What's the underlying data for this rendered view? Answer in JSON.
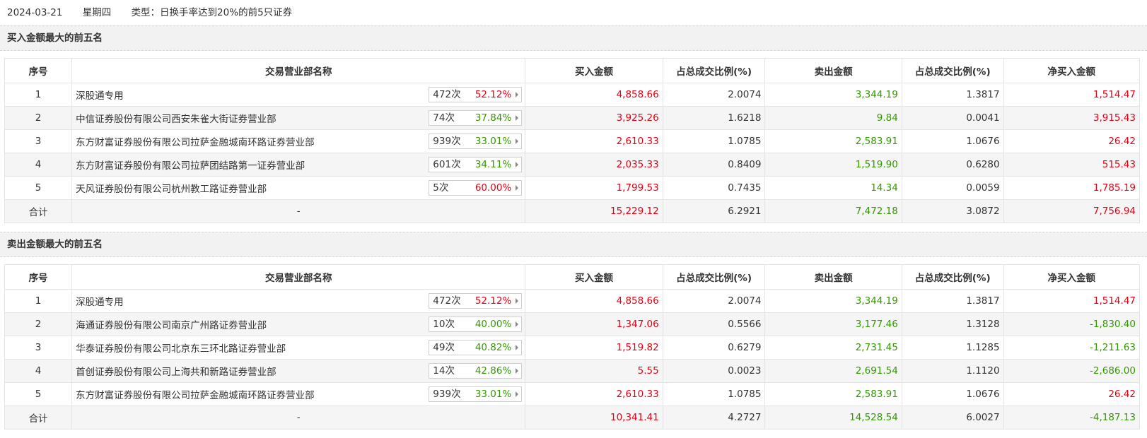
{
  "header": {
    "date": "2024-03-21",
    "weekday": "星期四",
    "type_text": "类型：日换手率达到20%的前5只证券"
  },
  "columns": [
    "序号",
    "交易营业部名称",
    "买入金额",
    "占总成交比例(%)",
    "卖出金额",
    "占总成交比例(%)",
    "净买入金额"
  ],
  "colors": {
    "up": "#e60012",
    "down": "#339900",
    "section_bg": "#f2f2f2",
    "row_alt_bg": "#f5f5f5"
  },
  "buy_section": {
    "title": "买入金额最大的前五名",
    "rows": [
      {
        "no": "1",
        "name": "深股通专用",
        "count": "472次",
        "pct": "52.12%",
        "pct_color": "red",
        "buy": "4,858.66",
        "buy_ratio": "2.0074",
        "sell": "3,344.19",
        "sell_ratio": "1.3817",
        "net": "1,514.47",
        "net_color": "red"
      },
      {
        "no": "2",
        "name": "中信证券股份有限公司西安朱雀大街证券营业部",
        "count": "74次",
        "pct": "37.84%",
        "pct_color": "green",
        "buy": "3,925.26",
        "buy_ratio": "1.6218",
        "sell": "9.84",
        "sell_ratio": "0.0041",
        "net": "3,915.43",
        "net_color": "red"
      },
      {
        "no": "3",
        "name": "东方财富证券股份有限公司拉萨金融城南环路证券营业部",
        "count": "939次",
        "pct": "33.01%",
        "pct_color": "green",
        "buy": "2,610.33",
        "buy_ratio": "1.0785",
        "sell": "2,583.91",
        "sell_ratio": "1.0676",
        "net": "26.42",
        "net_color": "red"
      },
      {
        "no": "4",
        "name": "东方财富证券股份有限公司拉萨团结路第一证券营业部",
        "count": "601次",
        "pct": "34.11%",
        "pct_color": "green",
        "buy": "2,035.33",
        "buy_ratio": "0.8409",
        "sell": "1,519.90",
        "sell_ratio": "0.6280",
        "net": "515.43",
        "net_color": "red"
      },
      {
        "no": "5",
        "name": "天风证券股份有限公司杭州教工路证券营业部",
        "count": "5次",
        "pct": "60.00%",
        "pct_color": "red",
        "buy": "1,799.53",
        "buy_ratio": "0.7435",
        "sell": "14.34",
        "sell_ratio": "0.0059",
        "net": "1,785.19",
        "net_color": "red"
      }
    ],
    "total": {
      "label": "合计",
      "name": "-",
      "buy": "15,229.12",
      "buy_ratio": "6.2921",
      "sell": "7,472.18",
      "sell_ratio": "3.0872",
      "net": "7,756.94",
      "net_color": "red"
    }
  },
  "sell_section": {
    "title": "卖出金额最大的前五名",
    "rows": [
      {
        "no": "1",
        "name": "深股通专用",
        "count": "472次",
        "pct": "52.12%",
        "pct_color": "red",
        "buy": "4,858.66",
        "buy_ratio": "2.0074",
        "sell": "3,344.19",
        "sell_ratio": "1.3817",
        "net": "1,514.47",
        "net_color": "red"
      },
      {
        "no": "2",
        "name": "海通证券股份有限公司南京广州路证券营业部",
        "count": "10次",
        "pct": "40.00%",
        "pct_color": "green",
        "buy": "1,347.06",
        "buy_ratio": "0.5566",
        "sell": "3,177.46",
        "sell_ratio": "1.3128",
        "net": "-1,830.40",
        "net_color": "green"
      },
      {
        "no": "3",
        "name": "华泰证券股份有限公司北京东三环北路证券营业部",
        "count": "49次",
        "pct": "40.82%",
        "pct_color": "green",
        "buy": "1,519.82",
        "buy_ratio": "0.6279",
        "sell": "2,731.45",
        "sell_ratio": "1.1285",
        "net": "-1,211.63",
        "net_color": "green"
      },
      {
        "no": "4",
        "name": "首创证券股份有限公司上海共和新路证券营业部",
        "count": "14次",
        "pct": "42.86%",
        "pct_color": "green",
        "buy": "5.55",
        "buy_ratio": "0.0023",
        "sell": "2,691.54",
        "sell_ratio": "1.1120",
        "net": "-2,686.00",
        "net_color": "green"
      },
      {
        "no": "5",
        "name": "东方财富证券股份有限公司拉萨金融城南环路证券营业部",
        "count": "939次",
        "pct": "33.01%",
        "pct_color": "green",
        "buy": "2,610.33",
        "buy_ratio": "1.0785",
        "sell": "2,583.91",
        "sell_ratio": "1.0676",
        "net": "26.42",
        "net_color": "red"
      }
    ],
    "total": {
      "label": "合计",
      "name": "-",
      "buy": "10,341.41",
      "buy_ratio": "4.2727",
      "sell": "14,528.54",
      "sell_ratio": "6.0027",
      "net": "-4,187.13",
      "net_color": "green"
    }
  }
}
